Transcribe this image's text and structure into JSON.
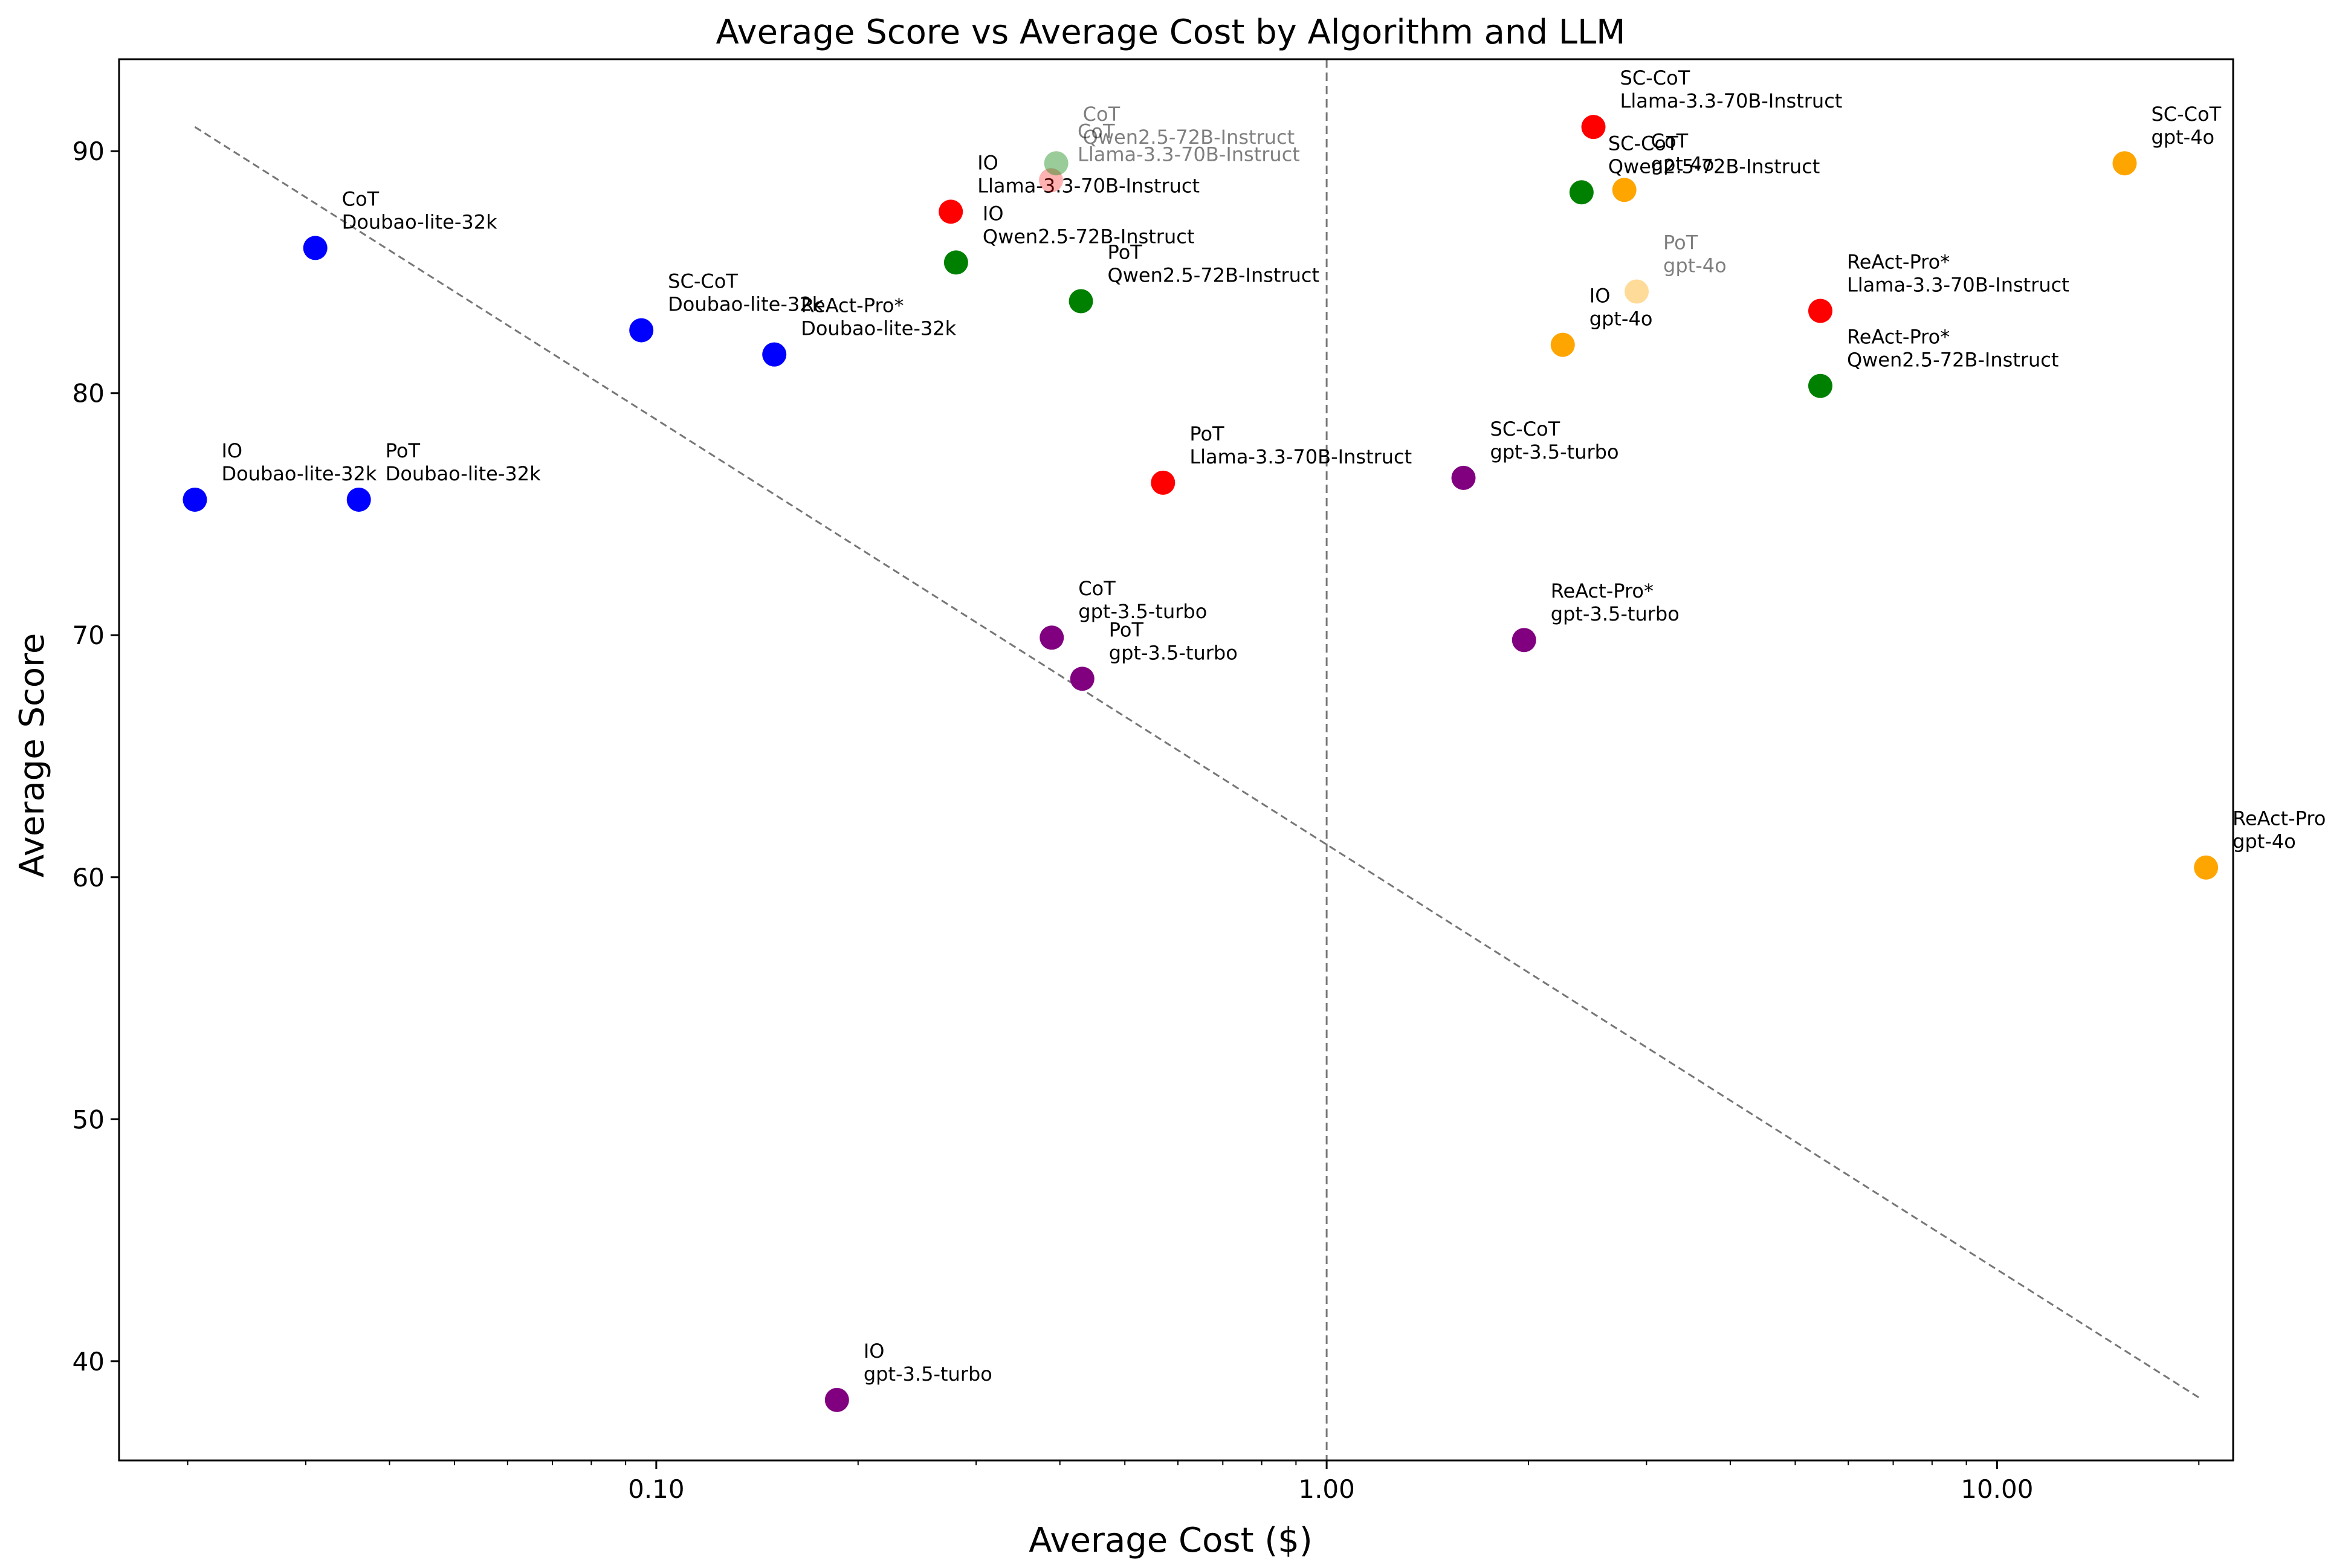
{
  "chart_data": {
    "type": "scatter",
    "title": "Average Score vs Average Cost by Algorithm and LLM",
    "xlabel": "Average Cost ($)",
    "ylabel": "Average Score",
    "xscale": "log",
    "xlim": [
      0.0158,
      22.5
    ],
    "ylim": [
      35.9,
      93.8
    ],
    "xticks": [
      0.1,
      1,
      10
    ],
    "xtick_labels": [
      "0.10",
      "1.00",
      "10.00"
    ],
    "yticks": [
      40,
      50,
      60,
      70,
      80,
      90
    ],
    "ytick_labels": [
      "40",
      "50",
      "60",
      "70",
      "80",
      "90"
    ],
    "grid": false,
    "legend": "none",
    "vertical_reference_x": 1.0,
    "trend_line": {
      "x": [
        0.0205,
        20.0
      ],
      "y": [
        91.0,
        38.5
      ]
    },
    "colors": {
      "Doubao-lite-32k": "#0000ff",
      "gpt-3.5-turbo": "#800080",
      "Llama-3.3-70B-Instruct": "#ff0000",
      "Qwen2.5-72B-Instruct": "#008000",
      "gpt-4o": "#ffa500"
    },
    "points": [
      {
        "algorithm": "IO",
        "llm": "Doubao-lite-32k",
        "x": 0.0205,
        "y": 75.6,
        "alpha": 1
      },
      {
        "algorithm": "CoT",
        "llm": "Doubao-lite-32k",
        "x": 0.031,
        "y": 86.0,
        "alpha": 1
      },
      {
        "algorithm": "PoT",
        "llm": "Doubao-lite-32k",
        "x": 0.036,
        "y": 75.6,
        "alpha": 1
      },
      {
        "algorithm": "SC-CoT",
        "llm": "Doubao-lite-32k",
        "x": 0.095,
        "y": 82.6,
        "alpha": 1
      },
      {
        "algorithm": "ReAct-Pro*",
        "llm": "Doubao-lite-32k",
        "x": 0.15,
        "y": 81.6,
        "alpha": 1
      },
      {
        "algorithm": "IO",
        "llm": "gpt-3.5-turbo",
        "x": 0.186,
        "y": 38.4,
        "alpha": 1
      },
      {
        "algorithm": "CoT",
        "llm": "gpt-3.5-turbo",
        "x": 0.389,
        "y": 69.9,
        "alpha": 1
      },
      {
        "algorithm": "PoT",
        "llm": "gpt-3.5-turbo",
        "x": 0.432,
        "y": 68.2,
        "alpha": 1
      },
      {
        "algorithm": "SC-CoT",
        "llm": "gpt-3.5-turbo",
        "x": 1.6,
        "y": 76.5,
        "alpha": 1
      },
      {
        "algorithm": "ReAct-Pro*",
        "llm": "gpt-3.5-turbo",
        "x": 1.97,
        "y": 69.8,
        "alpha": 1
      },
      {
        "algorithm": "IO",
        "llm": "Llama-3.3-70B-Instruct",
        "x": 0.275,
        "y": 87.5,
        "alpha": 1
      },
      {
        "algorithm": "CoT",
        "llm": "Llama-3.3-70B-Instruct",
        "x": 0.388,
        "y": 88.8,
        "alpha": 0.3
      },
      {
        "algorithm": "PoT",
        "llm": "Llama-3.3-70B-Instruct",
        "x": 0.57,
        "y": 76.3,
        "alpha": 1
      },
      {
        "algorithm": "SC-CoT",
        "llm": "Llama-3.3-70B-Instruct",
        "x": 2.5,
        "y": 91.0,
        "alpha": 1
      },
      {
        "algorithm": "ReAct-Pro*",
        "llm": "Llama-3.3-70B-Instruct",
        "x": 5.45,
        "y": 83.4,
        "alpha": 1
      },
      {
        "algorithm": "IO",
        "llm": "Qwen2.5-72B-Instruct",
        "x": 0.28,
        "y": 85.4,
        "alpha": 1
      },
      {
        "algorithm": "CoT",
        "llm": "Qwen2.5-72B-Instruct",
        "x": 0.395,
        "y": 89.5,
        "alpha": 0.4
      },
      {
        "algorithm": "PoT",
        "llm": "Qwen2.5-72B-Instruct",
        "x": 0.43,
        "y": 83.8,
        "alpha": 1
      },
      {
        "algorithm": "SC-CoT",
        "llm": "Qwen2.5-72B-Instruct",
        "x": 2.4,
        "y": 88.3,
        "alpha": 1
      },
      {
        "algorithm": "ReAct-Pro*",
        "llm": "Qwen2.5-72B-Instruct",
        "x": 5.45,
        "y": 80.3,
        "alpha": 1
      },
      {
        "algorithm": "IO",
        "llm": "gpt-4o",
        "x": 2.25,
        "y": 82.0,
        "alpha": 1
      },
      {
        "algorithm": "CoT",
        "llm": "gpt-4o",
        "x": 2.78,
        "y": 88.4,
        "alpha": 1
      },
      {
        "algorithm": "PoT",
        "llm": "gpt-4o",
        "x": 2.9,
        "y": 84.2,
        "alpha": 0.4
      },
      {
        "algorithm": "SC-CoT",
        "llm": "gpt-4o",
        "x": 15.5,
        "y": 89.5,
        "alpha": 1
      },
      {
        "algorithm": "ReAct-Pro*",
        "llm": "gpt-4o",
        "x": 20.5,
        "y": 60.4,
        "alpha": 1
      }
    ]
  }
}
